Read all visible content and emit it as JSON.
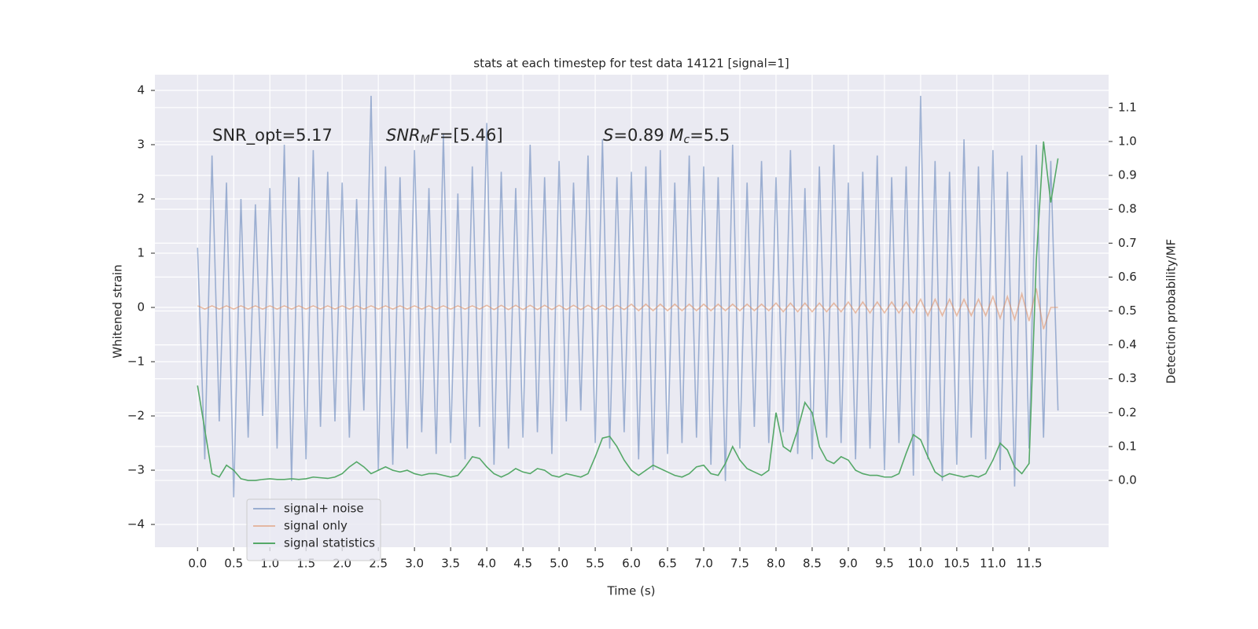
{
  "chart_data": {
    "type": "line",
    "title": "stats at each timestep for test data 14121 [signal=1]",
    "xlabel": "Time (s)",
    "ylabel": "Whitened strain",
    "y2label": "Detection probability/MF",
    "annotations": [
      [
        {
          "t": "SNR_opt=5.17"
        }
      ],
      [
        {
          "i": "SNR"
        },
        {
          "sub": "M"
        },
        {
          "i": "F"
        },
        {
          "t": "=[5.46]"
        }
      ],
      [
        {
          "i": "S"
        },
        {
          "t": "=0.89   "
        },
        {
          "i": "M"
        },
        {
          "sub": "c"
        },
        {
          "t": "=5.5"
        }
      ]
    ],
    "grid": true,
    "legend": "lower left",
    "xlim": [
      -0.59,
      12.6
    ],
    "ylim": [
      -4.42,
      4.29
    ],
    "y2lim": [
      -0.197,
      1.197
    ],
    "xticks": [
      {
        "value": 0,
        "label": "0.0"
      },
      0.5,
      {
        "value": 1,
        "label": "1.0"
      },
      1.5,
      {
        "value": 2,
        "label": "2.0"
      },
      2.5,
      {
        "value": 3,
        "label": "3.0"
      },
      3.5,
      {
        "value": 4,
        "label": "4.0"
      },
      4.5,
      {
        "value": 5,
        "label": "5.0"
      },
      5.5,
      {
        "value": 6,
        "label": "6.0"
      },
      6.5,
      {
        "value": 7,
        "label": "7.0"
      },
      7.5,
      {
        "value": 8,
        "label": "8.0"
      },
      8.5,
      {
        "value": 9,
        "label": "9.0"
      },
      9.5,
      {
        "value": 10,
        "label": "10.0"
      },
      10.5,
      {
        "value": 11,
        "label": "11.0"
      },
      11.5
    ],
    "yticks": [
      {
        "value": -4,
        "label": "−4"
      },
      {
        "value": -3,
        "label": "−3"
      },
      {
        "value": -2,
        "label": "−2"
      },
      {
        "value": -1,
        "label": "−1"
      },
      0,
      1,
      2,
      3,
      4
    ],
    "y2ticks": [
      {
        "value": 0,
        "label": "0.0"
      },
      0.1,
      0.2,
      0.3,
      0.4,
      0.5,
      0.6,
      0.7,
      0.8,
      0.9,
      {
        "value": 1,
        "label": "1.0"
      },
      1.1
    ],
    "x": [
      0,
      0.1,
      0.2,
      0.3,
      0.4,
      0.5,
      0.6,
      0.7,
      0.8,
      0.9,
      1,
      1.1,
      1.2,
      1.3,
      1.4,
      1.5,
      1.6,
      1.7,
      1.8,
      1.9,
      2,
      2.1,
      2.2,
      2.3,
      2.4,
      2.5,
      2.6,
      2.7,
      2.8,
      2.9,
      3,
      3.1,
      3.2,
      3.3,
      3.4,
      3.5,
      3.6,
      3.7,
      3.8,
      3.9,
      4,
      4.1,
      4.2,
      4.3,
      4.4,
      4.5,
      4.6,
      4.7,
      4.8,
      4.9,
      5,
      5.1,
      5.2,
      5.3,
      5.4,
      5.5,
      5.6,
      5.7,
      5.8,
      5.9,
      6,
      6.1,
      6.2,
      6.3,
      6.4,
      6.5,
      6.6,
      6.7,
      6.8,
      6.9,
      7,
      7.1,
      7.2,
      7.3,
      7.4,
      7.5,
      7.6,
      7.7,
      7.8,
      7.9,
      8,
      8.1,
      8.2,
      8.3,
      8.4,
      8.5,
      8.6,
      8.7,
      8.8,
      8.9,
      9,
      9.1,
      9.2,
      9.3,
      9.4,
      9.5,
      9.6,
      9.7,
      9.8,
      9.9,
      10,
      10.1,
      10.2,
      10.3,
      10.4,
      10.5,
      10.6,
      10.7,
      10.8,
      10.9,
      11,
      11.1,
      11.2,
      11.3,
      11.4,
      11.5,
      11.6,
      11.7,
      11.8,
      11.9
    ],
    "series": [
      {
        "name": "signal+ noise",
        "color": "#4c72b0",
        "opacity": 0.5,
        "values": [
          1.1,
          -2.8,
          2.8,
          -2.1,
          2.3,
          -3.5,
          2.0,
          -2.4,
          1.9,
          -2.0,
          2.2,
          -2.6,
          3.0,
          -3.2,
          2.4,
          -2.8,
          2.9,
          -2.2,
          2.5,
          -2.1,
          2.3,
          -2.4,
          2.0,
          -1.9,
          3.9,
          -3.0,
          2.6,
          -2.9,
          2.4,
          -2.6,
          2.9,
          -2.3,
          2.2,
          -2.7,
          3.2,
          -2.5,
          2.1,
          -2.8,
          2.6,
          -2.2,
          3.4,
          -2.9,
          2.5,
          -2.6,
          2.2,
          -2.4,
          3.0,
          -2.3,
          2.4,
          -2.7,
          2.7,
          -2.1,
          2.3,
          -1.9,
          2.8,
          -2.5,
          3.1,
          -2.6,
          2.4,
          -2.3,
          2.5,
          -2.8,
          2.6,
          -3.0,
          2.9,
          -2.7,
          2.3,
          -2.5,
          2.8,
          -2.4,
          2.6,
          -2.9,
          2.4,
          -3.2,
          3.0,
          -2.6,
          2.3,
          -2.2,
          2.7,
          -2.5,
          2.4,
          -2.3,
          2.9,
          -2.7,
          2.2,
          -2.8,
          2.6,
          -2.4,
          3.0,
          -2.5,
          2.3,
          -2.8,
          2.5,
          -2.6,
          2.8,
          -3.0,
          2.4,
          -2.5,
          2.6,
          -3.1,
          3.9,
          -2.8,
          2.7,
          -3.2,
          2.5,
          -2.9,
          3.1,
          -2.4,
          2.6,
          -2.8,
          2.9,
          -3.0,
          2.5,
          -3.3,
          2.8,
          -2.6,
          3.0,
          -2.4,
          2.7,
          -1.9
        ]
      },
      {
        "name": "signal only",
        "color": "#dd8452",
        "opacity": 0.5,
        "values": [
          0.03,
          -0.03,
          0.03,
          -0.03,
          0.03,
          -0.03,
          0.03,
          -0.03,
          0.03,
          -0.03,
          0.03,
          -0.03,
          0.03,
          -0.03,
          0.03,
          -0.03,
          0.03,
          -0.03,
          0.03,
          -0.03,
          0.03,
          -0.03,
          0.03,
          -0.03,
          0.03,
          -0.03,
          0.03,
          -0.03,
          0.03,
          -0.03,
          0.03,
          -0.03,
          0.03,
          -0.03,
          0.03,
          -0.03,
          0.03,
          -0.03,
          0.03,
          -0.03,
          0.04,
          -0.04,
          0.04,
          -0.04,
          0.04,
          -0.04,
          0.04,
          -0.04,
          0.04,
          -0.04,
          0.04,
          -0.04,
          0.04,
          -0.04,
          0.04,
          -0.04,
          0.04,
          -0.04,
          0.04,
          -0.04,
          0.06,
          -0.06,
          0.06,
          -0.06,
          0.06,
          -0.06,
          0.06,
          -0.06,
          0.06,
          -0.06,
          0.06,
          -0.06,
          0.06,
          -0.06,
          0.06,
          -0.06,
          0.06,
          -0.06,
          0.06,
          -0.06,
          0.08,
          -0.08,
          0.08,
          -0.08,
          0.08,
          -0.08,
          0.08,
          -0.08,
          0.08,
          -0.08,
          0.1,
          -0.1,
          0.1,
          -0.1,
          0.1,
          -0.1,
          0.1,
          -0.1,
          0.1,
          -0.1,
          0.15,
          -0.15,
          0.15,
          -0.15,
          0.15,
          -0.15,
          0.15,
          -0.15,
          0.15,
          -0.15,
          0.2,
          -0.2,
          0.2,
          -0.22,
          0.25,
          -0.25,
          0.35,
          -0.4,
          0,
          0
        ]
      },
      {
        "name": "signal statistics",
        "color": "#55a868",
        "opacity": 1,
        "axis": "y2",
        "values": [
          0.28,
          0.15,
          0.02,
          0.01,
          0.045,
          0.03,
          0.005,
          0,
          0,
          0.003,
          0.005,
          0.003,
          0.003,
          0.005,
          0.003,
          0.005,
          0.01,
          0.008,
          0.006,
          0.01,
          0.02,
          0.04,
          0.055,
          0.04,
          0.02,
          0.03,
          0.04,
          0.03,
          0.025,
          0.03,
          0.02,
          0.015,
          0.02,
          0.02,
          0.015,
          0.01,
          0.015,
          0.04,
          0.07,
          0.065,
          0.04,
          0.02,
          0.01,
          0.02,
          0.035,
          0.025,
          0.02,
          0.035,
          0.03,
          0.015,
          0.01,
          0.02,
          0.015,
          0.01,
          0.02,
          0.07,
          0.125,
          0.13,
          0.1,
          0.06,
          0.03,
          0.015,
          0.03,
          0.045,
          0.035,
          0.025,
          0.015,
          0.01,
          0.02,
          0.04,
          0.045,
          0.02,
          0.015,
          0.05,
          0.1,
          0.06,
          0.035,
          0.025,
          0.015,
          0.03,
          0.2,
          0.1,
          0.085,
          0.15,
          0.23,
          0.2,
          0.1,
          0.06,
          0.05,
          0.07,
          0.06,
          0.03,
          0.02,
          0.015,
          0.015,
          0.01,
          0.01,
          0.02,
          0.08,
          0.135,
          0.12,
          0.07,
          0.025,
          0.01,
          0.02,
          0.015,
          0.01,
          0.015,
          0.01,
          0.02,
          0.06,
          0.11,
          0.09,
          0.04,
          0.02,
          0.05,
          0.65,
          1.0,
          0.82,
          0.95
        ]
      }
    ]
  }
}
